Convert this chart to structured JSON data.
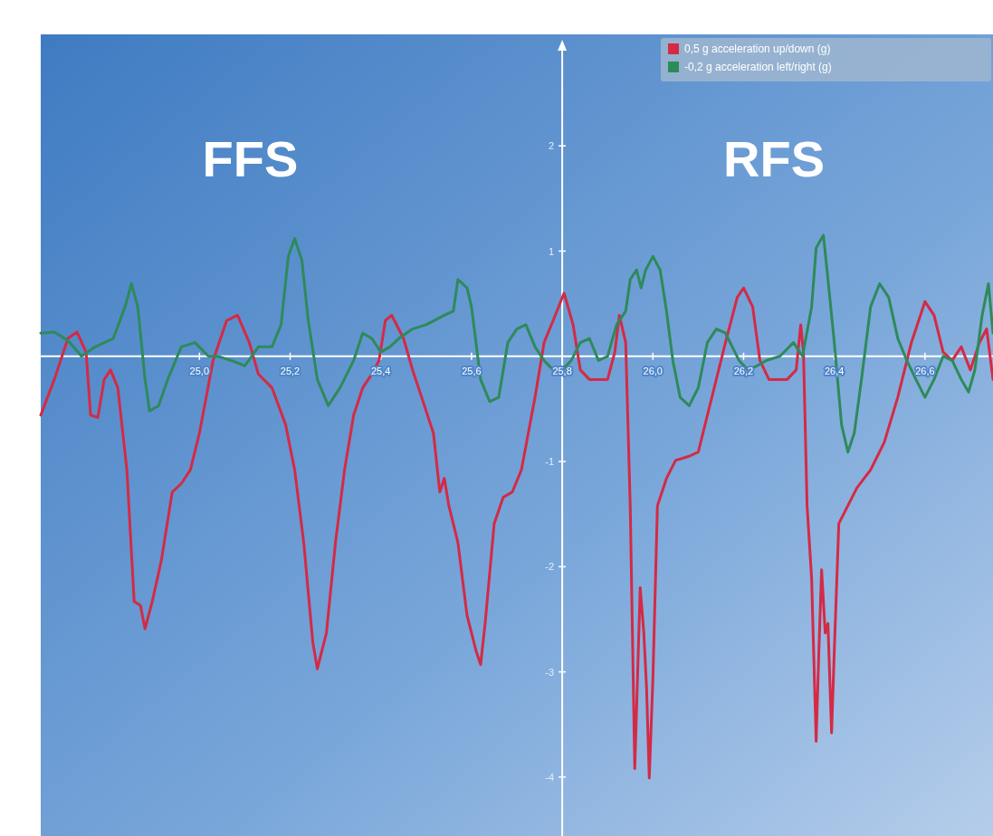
{
  "chart_data": {
    "type": "line",
    "xlim": [
      24.65,
      26.75
    ],
    "ylim": [
      -4.56,
      3.06
    ],
    "xticks": [
      {
        "value": 25.0,
        "label": "25,0"
      },
      {
        "value": 25.2,
        "label": "25,2"
      },
      {
        "value": 25.4,
        "label": "25,4"
      },
      {
        "value": 25.6,
        "label": "25,6"
      },
      {
        "value": 25.8,
        "label": "25,8"
      },
      {
        "value": 26.0,
        "label": "26,0"
      },
      {
        "value": 26.2,
        "label": "26,2"
      },
      {
        "value": 26.4,
        "label": "26,4"
      },
      {
        "value": 26.6,
        "label": "26,6"
      }
    ],
    "yticks": [
      -4,
      -3,
      -2,
      -1,
      1,
      2
    ],
    "annotations": [
      "FFS",
      "RFS"
    ],
    "legend": "top right",
    "grid": false,
    "marker": "none",
    "line_style": "solid",
    "series": [
      {
        "name": "0,5 g  acceleration up/down (g)",
        "color": "#d42a45",
        "x": [
          24.65,
          24.68,
          24.71,
          24.73,
          24.75,
          24.76,
          24.776,
          24.79,
          24.804,
          24.82,
          24.84,
          24.856,
          24.87,
          24.88,
          24.896,
          24.916,
          24.94,
          24.96,
          24.98,
          25.0,
          25.03,
          25.06,
          25.084,
          25.11,
          25.13,
          25.16,
          25.19,
          25.21,
          25.23,
          25.25,
          25.26,
          25.28,
          25.3,
          25.32,
          25.34,
          25.36,
          25.38,
          25.396,
          25.41,
          25.424,
          25.45,
          25.47,
          25.49,
          25.516,
          25.53,
          25.54,
          25.55,
          25.57,
          25.59,
          25.61,
          25.62,
          25.63,
          25.65,
          25.67,
          25.69,
          25.71,
          25.74,
          25.76,
          25.78,
          25.804,
          25.824,
          25.84,
          25.86,
          25.88,
          25.9,
          25.916,
          25.926,
          25.94,
          25.95,
          25.96,
          25.966,
          25.972,
          25.98,
          25.986,
          25.992,
          26.0,
          26.01,
          26.03,
          26.05,
          26.08,
          26.1,
          26.13,
          26.16,
          26.186,
          26.2,
          26.22,
          26.236,
          26.256,
          26.276,
          26.296,
          26.316,
          26.326,
          26.332,
          26.34,
          26.35,
          26.36,
          26.366,
          26.372,
          26.38,
          26.386,
          26.394,
          26.4,
          26.41,
          26.43,
          26.45,
          26.48,
          26.51,
          26.54,
          26.57,
          26.6,
          26.62,
          26.64,
          26.66,
          26.68,
          26.7,
          26.72,
          26.736,
          26.75
        ],
        "values": [
          -0.56,
          -0.22,
          0.17,
          0.23,
          0.04,
          -0.56,
          -0.58,
          -0.22,
          -0.13,
          -0.3,
          -1.08,
          -2.33,
          -2.37,
          -2.59,
          -2.33,
          -1.94,
          -1.29,
          -1.21,
          -1.08,
          -0.73,
          -0.04,
          0.34,
          0.39,
          0.13,
          -0.17,
          -0.3,
          -0.65,
          -1.08,
          -1.77,
          -2.72,
          -2.97,
          -2.63,
          -1.77,
          -1.08,
          -0.56,
          -0.3,
          -0.17,
          -0.04,
          0.34,
          0.39,
          0.17,
          -0.13,
          -0.39,
          -0.73,
          -1.29,
          -1.16,
          -1.42,
          -1.77,
          -2.46,
          -2.8,
          -2.93,
          -2.54,
          -1.59,
          -1.34,
          -1.29,
          -1.08,
          -0.39,
          0.13,
          0.34,
          0.6,
          0.3,
          -0.13,
          -0.22,
          -0.22,
          -0.22,
          0.04,
          0.39,
          0.13,
          -1.42,
          -3.92,
          -3.06,
          -2.2,
          -2.63,
          -3.15,
          -4.01,
          -3.06,
          -1.42,
          -1.16,
          -0.99,
          -0.95,
          -0.91,
          -0.39,
          0.13,
          0.56,
          0.65,
          0.47,
          -0.04,
          -0.22,
          -0.22,
          -0.22,
          -0.13,
          0.3,
          0.04,
          -1.42,
          -2.11,
          -3.66,
          -2.8,
          -2.03,
          -2.63,
          -2.54,
          -3.58,
          -2.8,
          -1.59,
          -1.42,
          -1.25,
          -1.08,
          -0.82,
          -0.39,
          0.13,
          0.52,
          0.39,
          0.04,
          -0.04,
          0.09,
          -0.13,
          0.13,
          0.26,
          -0.22
        ]
      },
      {
        "name": "-0,2 g  acceleration left/right (g)",
        "color": "#2e8a5a",
        "x": [
          24.65,
          24.68,
          24.71,
          24.74,
          24.77,
          24.81,
          24.836,
          24.85,
          24.864,
          24.88,
          24.89,
          24.91,
          24.93,
          24.96,
          24.99,
          25.02,
          25.04,
          25.07,
          25.1,
          25.13,
          25.16,
          25.18,
          25.196,
          25.21,
          25.226,
          25.24,
          25.26,
          25.284,
          25.31,
          25.34,
          25.36,
          25.38,
          25.4,
          25.42,
          25.44,
          25.47,
          25.5,
          25.54,
          25.56,
          25.57,
          25.59,
          25.6,
          25.62,
          25.64,
          25.66,
          25.68,
          25.7,
          25.72,
          25.74,
          25.76,
          25.78,
          25.8,
          25.82,
          25.84,
          25.86,
          25.88,
          25.9,
          25.92,
          25.94,
          25.95,
          25.964,
          25.974,
          25.984,
          26.0,
          26.016,
          26.03,
          26.044,
          26.06,
          26.08,
          26.1,
          26.12,
          26.14,
          26.16,
          26.19,
          26.21,
          26.23,
          26.25,
          26.28,
          26.31,
          26.33,
          26.35,
          26.36,
          26.376,
          26.384,
          26.4,
          26.416,
          26.43,
          26.444,
          26.46,
          26.48,
          26.5,
          26.52,
          26.54,
          26.56,
          26.58,
          26.6,
          26.62,
          26.64,
          26.66,
          26.68,
          26.696,
          26.71,
          26.726,
          26.74,
          26.75
        ],
        "values": [
          0.22,
          0.23,
          0.15,
          0,
          0.09,
          0.17,
          0.47,
          0.69,
          0.47,
          -0.22,
          -0.52,
          -0.47,
          -0.22,
          0.09,
          0.13,
          0,
          0,
          -0.04,
          -0.09,
          0.09,
          0.09,
          0.3,
          0.95,
          1.12,
          0.91,
          0.34,
          -0.22,
          -0.47,
          -0.3,
          -0.04,
          0.22,
          0.17,
          0.04,
          0.09,
          0.17,
          0.26,
          0.3,
          0.39,
          0.43,
          0.73,
          0.65,
          0.47,
          -0.22,
          -0.43,
          -0.39,
          0.13,
          0.26,
          0.3,
          0.09,
          -0.04,
          -0.13,
          -0.13,
          -0.04,
          0.13,
          0.17,
          -0.04,
          0,
          0.3,
          0.43,
          0.73,
          0.82,
          0.65,
          0.82,
          0.95,
          0.82,
          0.43,
          -0.04,
          -0.39,
          -0.47,
          -0.3,
          0.13,
          0.26,
          0.22,
          -0.04,
          -0.13,
          -0.09,
          -0.04,
          0,
          0.13,
          0,
          0.47,
          1.03,
          1.15,
          0.82,
          0.13,
          -0.65,
          -0.91,
          -0.73,
          -0.22,
          0.47,
          0.69,
          0.56,
          0.17,
          -0.04,
          -0.22,
          -0.39,
          -0.22,
          0,
          -0.04,
          -0.22,
          -0.34,
          -0.13,
          0.39,
          0.69,
          0.22
        ]
      }
    ]
  }
}
